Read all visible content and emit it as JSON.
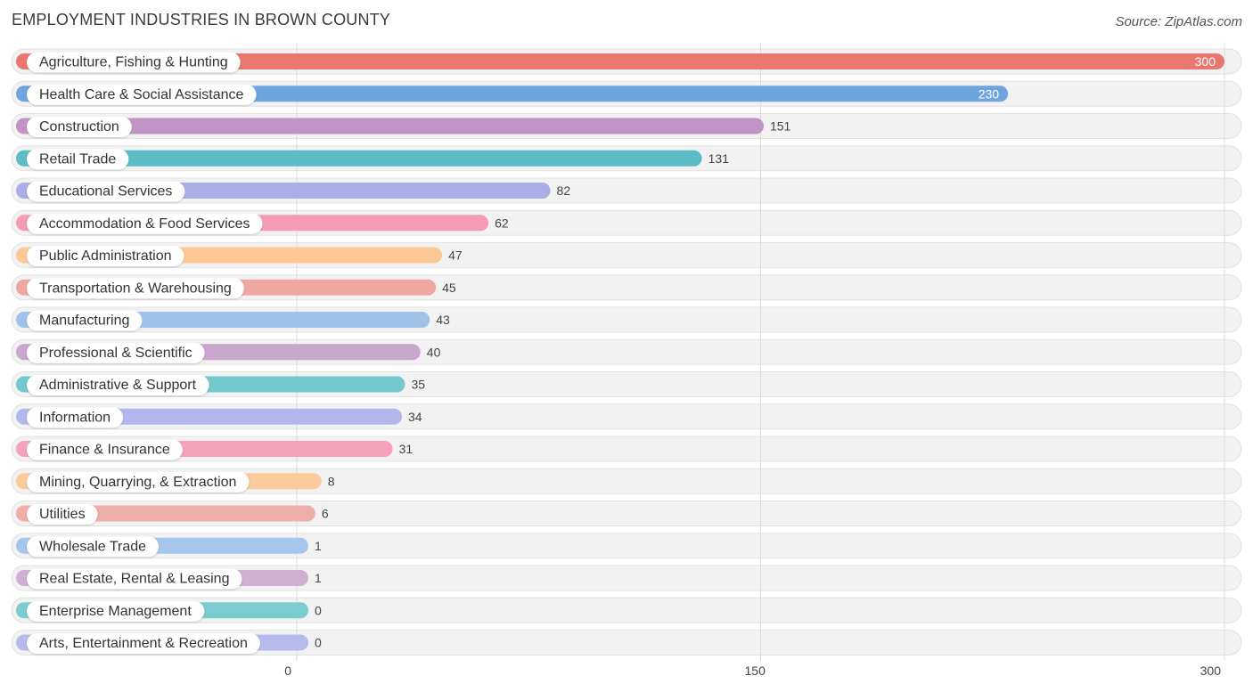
{
  "header": {
    "title": "EMPLOYMENT INDUSTRIES IN BROWN COUNTY",
    "source": "Source: ZipAtlas.com"
  },
  "chart_data": {
    "type": "bar",
    "orientation": "horizontal",
    "title": "EMPLOYMENT INDUSTRIES IN BROWN COUNTY",
    "xlabel": "",
    "ylabel": "",
    "xlim": [
      0,
      300
    ],
    "ticks": [
      0,
      150,
      300
    ],
    "grid": true,
    "categories": [
      "Agriculture, Fishing & Hunting",
      "Health Care & Social Assistance",
      "Construction",
      "Retail Trade",
      "Educational Services",
      "Accommodation & Food Services",
      "Public Administration",
      "Transportation & Warehousing",
      "Manufacturing",
      "Professional & Scientific",
      "Administrative & Support",
      "Information",
      "Finance & Insurance",
      "Mining, Quarrying, & Extraction",
      "Utilities",
      "Wholesale Trade",
      "Real Estate, Rental & Leasing",
      "Enterprise Management",
      "Arts, Entertainment & Recreation"
    ],
    "values": [
      300,
      230,
      151,
      131,
      82,
      62,
      47,
      45,
      43,
      40,
      35,
      34,
      31,
      8,
      6,
      1,
      1,
      0,
      0
    ],
    "colors": [
      "#e8776f",
      "#6fa5de",
      "#c094c4",
      "#5bbcc6",
      "#a9afe6",
      "#f59bb6",
      "#fbc896",
      "#efa7a2",
      "#9fc1ea",
      "#c9a6cd",
      "#72c8cd",
      "#b3b7ec",
      "#f6a2bd",
      "#fbcb9c",
      "#f0aeab",
      "#a6c6ee",
      "#cfb0d2",
      "#7accd0",
      "#b7bbec"
    ]
  }
}
